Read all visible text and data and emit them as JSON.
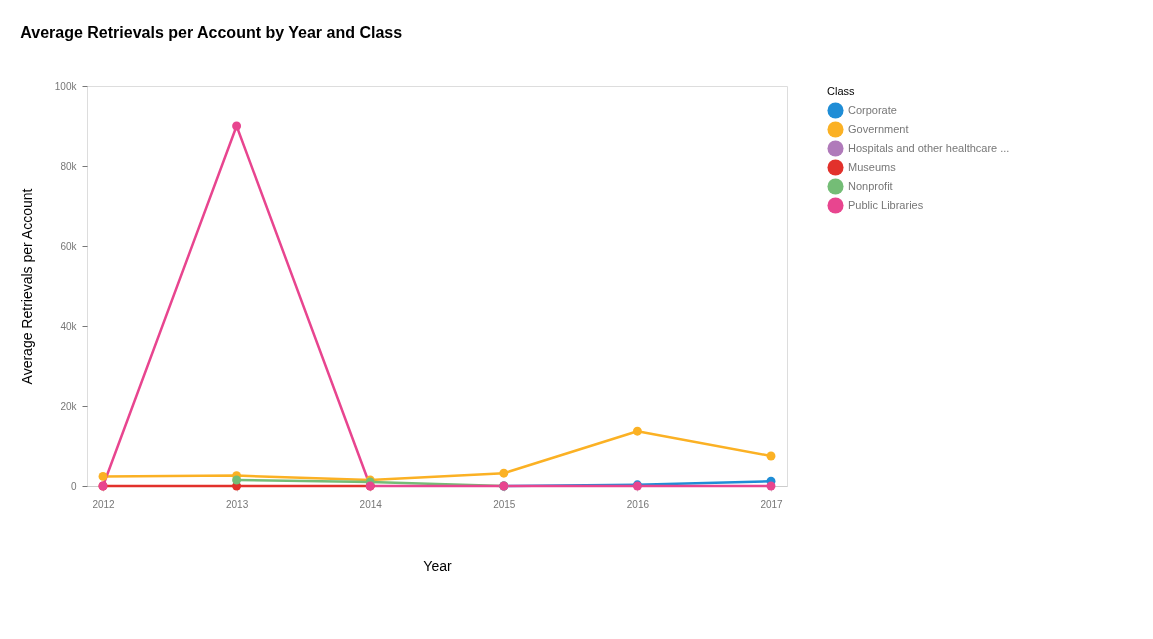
{
  "chart_data": {
    "type": "line",
    "title": "Average Retrievals per Account by Year and Class",
    "xlabel": "Year",
    "ylabel": "Average Retrievals per Account",
    "legend_title": "Class",
    "categories": [
      "2012",
      "2013",
      "2014",
      "2015",
      "2016",
      "2017"
    ],
    "ylim": [
      0,
      100000
    ],
    "yticks": [
      0,
      {
        "value": 20000,
        "label": "20k"
      },
      {
        "value": 40000,
        "label": "40k"
      },
      {
        "value": 60000,
        "label": "60k"
      },
      {
        "value": 80000,
        "label": "80k"
      },
      {
        "value": 100000,
        "label": "100k"
      }
    ],
    "grid": false,
    "legend": "top right",
    "marker": "circle",
    "line_style": "solid",
    "series": [
      {
        "name": "Corporate",
        "color": "#1f8dd6",
        "values": [
          null,
          null,
          null,
          0,
          300,
          1200
        ]
      },
      {
        "name": "Government",
        "color": "#fbb124",
        "values": [
          2400,
          2600,
          1500,
          3200,
          13700,
          7500
        ]
      },
      {
        "name": "Hospitals and other healthcare ...",
        "color": "#b07aba",
        "values": [
          null,
          null,
          null,
          0,
          null,
          null
        ]
      },
      {
        "name": "Museums",
        "color": "#e2312b",
        "values": [
          0,
          0,
          0,
          null,
          null,
          null
        ]
      },
      {
        "name": "Nonprofit",
        "color": "#74bd76",
        "values": [
          null,
          1500,
          1000,
          0,
          null,
          null
        ]
      },
      {
        "name": "Public Libraries",
        "color": "#e8458f",
        "values": [
          0,
          90000,
          0,
          0,
          0,
          0
        ]
      }
    ]
  }
}
